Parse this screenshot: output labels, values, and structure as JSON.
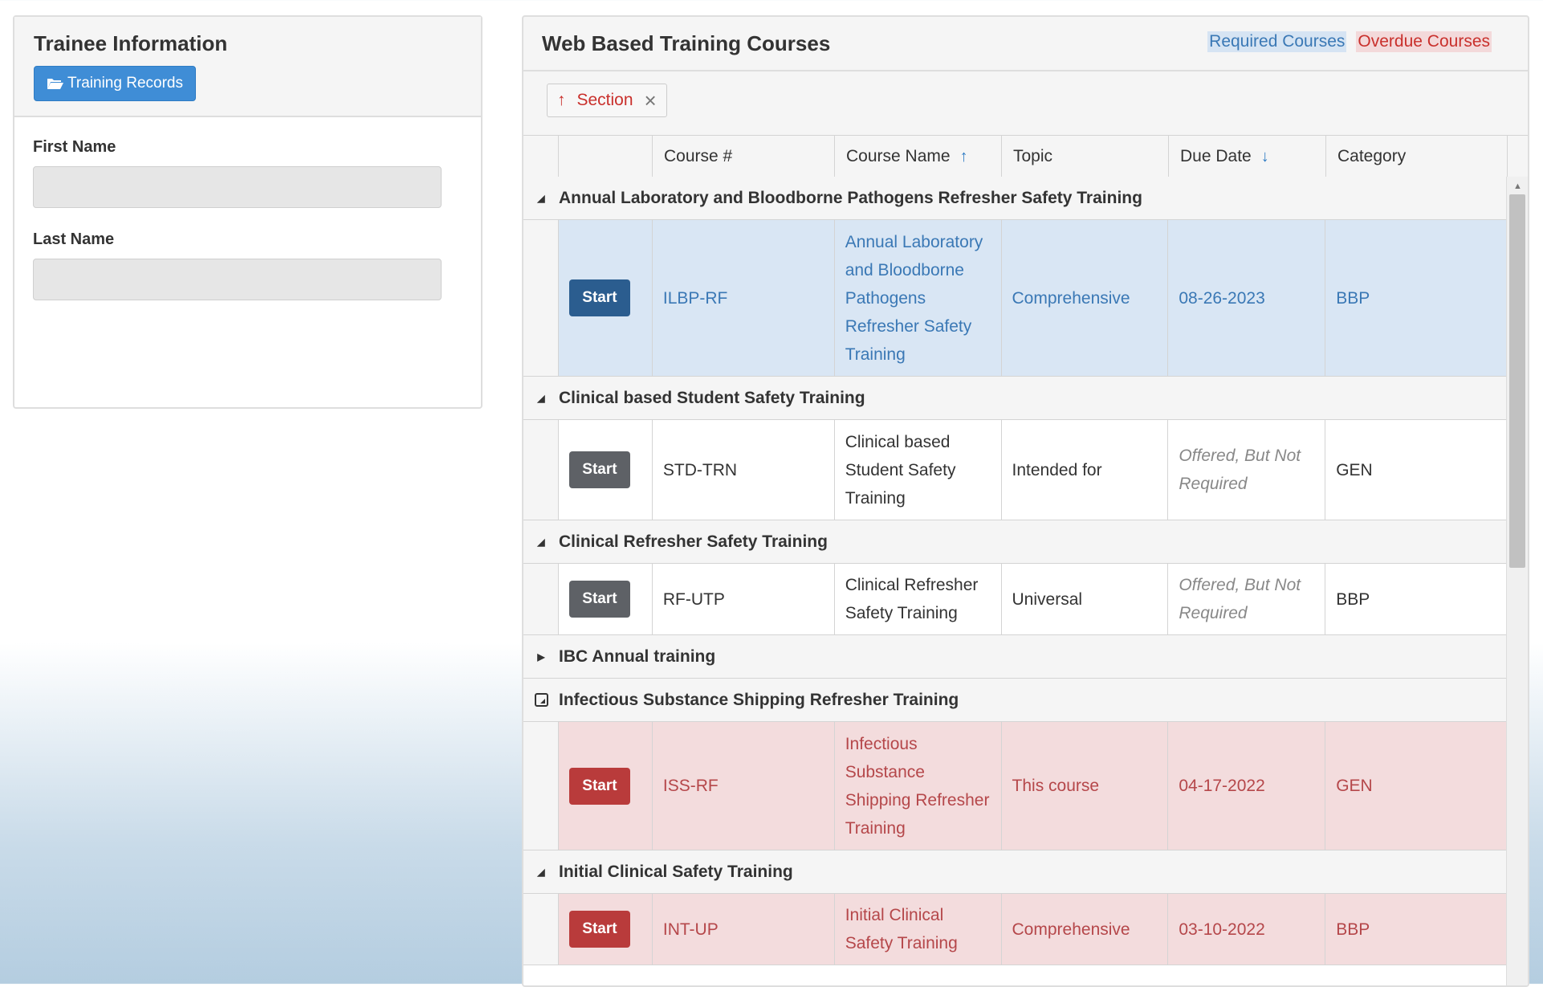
{
  "trainee": {
    "title": "Trainee Information",
    "records_button": "Training Records",
    "first_name_label": "First Name",
    "first_name_value": "",
    "last_name_label": "Last Name",
    "last_name_value": ""
  },
  "courses": {
    "title": "Web Based Training Courses",
    "legend_required": "Required Courses",
    "legend_overdue": "Overdue Courses",
    "group_chip": "Section",
    "columns": {
      "course_num": "Course #",
      "course_name": "Course Name",
      "topic": "Topic",
      "due_date": "Due Date",
      "category": "Category"
    },
    "start_label": "Start",
    "groups": [
      {
        "name": "Annual Laboratory and Bloodborne Pathogens Refresher Safety Training",
        "expanded": true,
        "row": {
          "status": "required",
          "course_num": "ILBP-RF",
          "course_name": "Annual Laboratory and Bloodborne Pathogens Refresher Safety Training",
          "topic": "Comprehensive",
          "due_date": "08-26-2023",
          "category": "BBP"
        }
      },
      {
        "name": "Clinical based Student Safety Training",
        "expanded": true,
        "row": {
          "status": "offered",
          "course_num": "STD-TRN",
          "course_name": "Clinical based Student Safety Training",
          "topic": "Intended for",
          "due_date": "Offered, But Not Required",
          "category": "GEN"
        }
      },
      {
        "name": "Clinical Refresher Safety Training",
        "expanded": true,
        "row": {
          "status": "offered",
          "course_num": "RF-UTP",
          "course_name": "Clinical Refresher Safety Training",
          "topic": "Universal",
          "due_date": "Offered, But Not Required",
          "category": "BBP"
        }
      },
      {
        "name": "IBC Annual training",
        "expanded": false
      },
      {
        "name": "Infectious Substance Shipping Refresher Training",
        "expanded": true,
        "row": {
          "status": "overdue",
          "course_num": "ISS-RF",
          "course_name": "Infectious Substance Shipping Refresher Training",
          "topic": "This course",
          "due_date": "04-17-2022",
          "category": "GEN"
        }
      },
      {
        "name": "Initial Clinical Safety Training",
        "expanded": true,
        "row": {
          "status": "overdue",
          "course_num": "INT-UP",
          "course_name": "Initial Clinical Safety Training",
          "topic": "Comprehensive",
          "due_date": "03-10-2022",
          "category": "BBP"
        }
      }
    ]
  },
  "colors": {
    "required_bg": "#d9e6f4",
    "overdue_bg": "#f3dcdd",
    "accent_blue": "#3f8dd6"
  }
}
